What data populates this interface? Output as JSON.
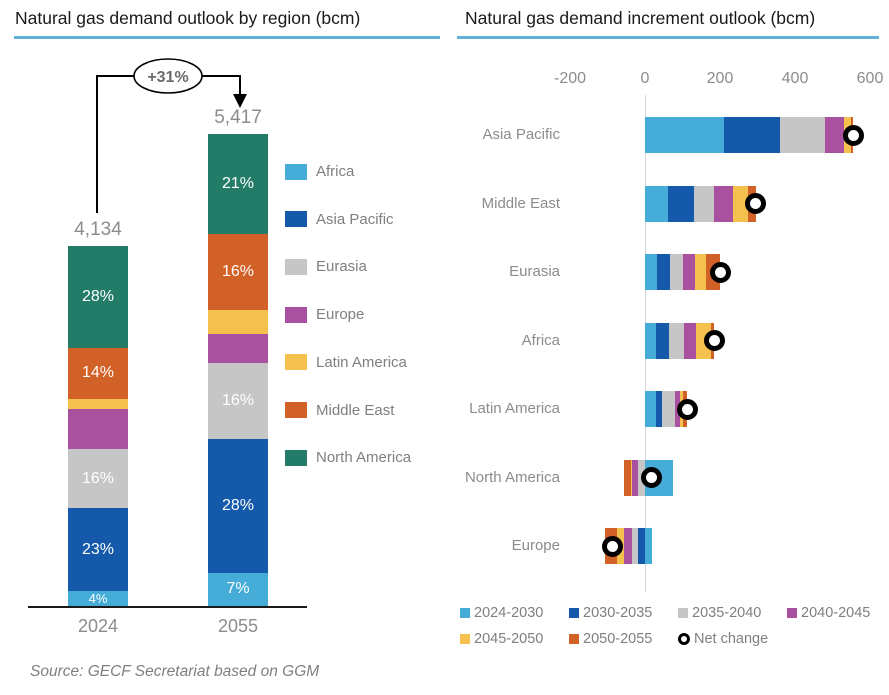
{
  "source": "Source: GECF Secretariat based on GGM",
  "colors": {
    "title_underline": "#61b0d5",
    "axis_text": "#8c8c8c",
    "net_change_ring": "#000000"
  },
  "left_chart": {
    "title": "Natural gas demand outlook by region (bcm)",
    "annotation": "+31%",
    "legend": [
      "Africa",
      "Asia Pacific",
      "Eurasia",
      "Europe",
      "Latin America",
      "Middle East",
      "North America"
    ]
  },
  "right_chart": {
    "title": "Natural gas demand increment outlook (bcm)",
    "legend": [
      "2024-2030",
      "2030-2035",
      "2035-2040",
      "2040-2045",
      "2045-2050",
      "2050-2055",
      "Net change"
    ]
  },
  "chart_data": [
    {
      "type": "bar",
      "subtype": "stacked-vertical",
      "title": "Natural gas demand outlook by region (bcm)",
      "categories": [
        "2024",
        "2055"
      ],
      "totals": [
        4134,
        5417
      ],
      "total_labels": [
        "4,134",
        "5,417"
      ],
      "growth_annotation": "+31%",
      "stack_order_bottom_to_top": [
        "Africa",
        "Asia Pacific",
        "Eurasia",
        "Europe",
        "Latin America",
        "Middle East",
        "North America"
      ],
      "series": [
        {
          "name": "Africa",
          "color": "#45acd8",
          "shares_pct": [
            4,
            7
          ],
          "labels": [
            "4%",
            "7%"
          ]
        },
        {
          "name": "Asia Pacific",
          "color": "#155aaa",
          "shares_pct": [
            23,
            28
          ],
          "labels": [
            "23%",
            "28%"
          ]
        },
        {
          "name": "Eurasia",
          "color": "#c6c6c6",
          "shares_pct": [
            16,
            16
          ],
          "labels": [
            "16%",
            "16%"
          ]
        },
        {
          "name": "Europe",
          "color": "#a9519e",
          "shares_pct": [
            11,
            6
          ],
          "labels": [
            null,
            null
          ]
        },
        {
          "name": "Latin America",
          "color": "#f4c14f",
          "shares_pct": [
            3,
            5
          ],
          "labels": [
            null,
            null
          ]
        },
        {
          "name": "Middle East",
          "color": "#d26127",
          "shares_pct": [
            14,
            16
          ],
          "labels": [
            "14%",
            "16%"
          ]
        },
        {
          "name": "North America",
          "color": "#237c68",
          "shares_pct": [
            28,
            21
          ],
          "labels": [
            "28%",
            "21%"
          ]
        }
      ]
    },
    {
      "type": "bar",
      "subtype": "stacked-horizontal",
      "title": "Natural gas demand increment outlook (bcm)",
      "x_axis": {
        "ticks": [
          -200,
          0,
          200,
          400,
          600
        ],
        "tick_labels": [
          "-200",
          "0",
          "200",
          "400",
          "600"
        ],
        "range": [
          -300,
          650
        ],
        "gridlines": "zero-only"
      },
      "categories": [
        "Asia Pacific",
        "Middle East",
        "Eurasia",
        "Africa",
        "Latin America",
        "North America",
        "Europe"
      ],
      "periods": [
        "2024-2030",
        "2030-2035",
        "2035-2040",
        "2040-2045",
        "2045-2050",
        "2050-2055"
      ],
      "period_colors": [
        "#45acd8",
        "#155aaa",
        "#c6c6c6",
        "#a9519e",
        "#f4c14f",
        "#d26127"
      ],
      "rows": [
        {
          "region": "Asia Pacific",
          "values": [
            210,
            150,
            120,
            50,
            20,
            5
          ],
          "net_change": 555
        },
        {
          "region": "Middle East",
          "values": [
            60,
            70,
            55,
            50,
            40,
            20
          ],
          "net_change": 295
        },
        {
          "region": "Eurasia",
          "values": [
            33,
            34,
            35,
            32,
            28,
            38
          ],
          "net_change": 200
        },
        {
          "region": "Africa",
          "values": [
            30,
            33,
            40,
            33,
            40,
            9
          ],
          "net_change": 185
        },
        {
          "region": "Latin America",
          "values": [
            30,
            16,
            34,
            12,
            8,
            12
          ],
          "net_change": 112
        },
        {
          "region": "North America",
          "values": [
            75,
            0,
            -19,
            -16,
            -2,
            -20
          ],
          "net_change": 18
        },
        {
          "region": "Europe",
          "values": [
            18,
            -18,
            -16,
            -21,
            -21,
            -30
          ],
          "net_change": -88
        }
      ]
    }
  ]
}
